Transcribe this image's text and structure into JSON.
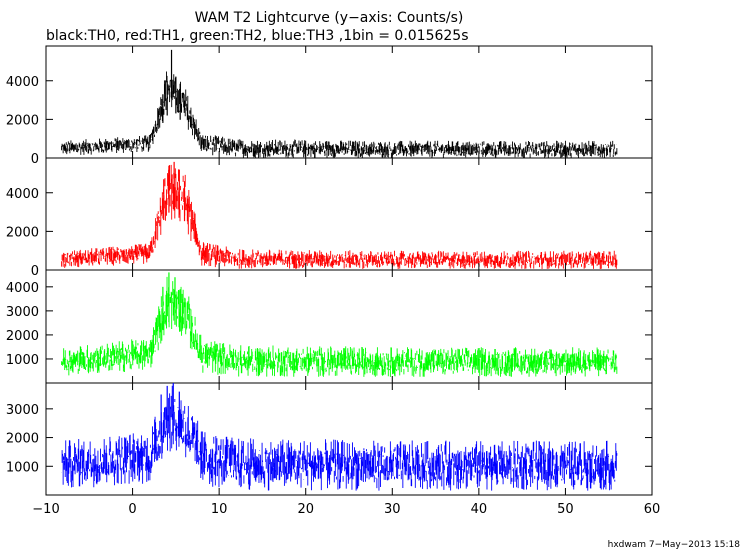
{
  "title": "WAM T2 Lightcurve (y−axis: Counts/s)",
  "subtitle": "black:TH0, red:TH1, green:TH2, blue:TH3 ,1bin = 0.015625s",
  "footer": "hxdwam  7−May−2013 15:18",
  "chart_data": {
    "type": "line",
    "x_range": [
      -10,
      60
    ],
    "x_ticks": [
      -10,
      0,
      10,
      20,
      30,
      40,
      50,
      60
    ],
    "x_tick_labels": [
      "−10",
      "0",
      "10",
      "20",
      "30",
      "40",
      "50",
      "60"
    ],
    "x_data_span": [
      -8.2,
      56.0
    ],
    "grid": false,
    "panels": [
      {
        "name": "TH0",
        "color": "#000000",
        "ylim": [
          0,
          5800
        ],
        "y_ticks": [
          0,
          2000,
          4000
        ],
        "y_tick_labels": [
          "0",
          "2000",
          "4000"
        ],
        "peak_x": [
          3.5,
          4.0,
          4.5,
          5.0,
          5.5
        ],
        "peak_y": [
          3300,
          4000,
          5600,
          4200,
          3600
        ],
        "profile": [
          [
            -8.2,
            300
          ],
          [
            0,
            400
          ],
          [
            1.5,
            700
          ],
          [
            2.5,
            2000
          ],
          [
            3.5,
            3300
          ],
          [
            4.5,
            3800
          ],
          [
            5.5,
            3100
          ],
          [
            6.5,
            1500
          ],
          [
            7.5,
            700
          ],
          [
            9,
            450
          ],
          [
            12,
            300
          ],
          [
            20,
            300
          ],
          [
            40,
            300
          ],
          [
            56,
            300
          ]
        ],
        "noise_band_high": [
          [
            -8.2,
            900
          ],
          [
            2,
            1200
          ],
          [
            4,
            4800
          ],
          [
            6,
            3800
          ],
          [
            8,
            1300
          ],
          [
            12,
            1000
          ],
          [
            30,
            900
          ],
          [
            56,
            900
          ]
        ],
        "noise_band_low": [
          [
            -8.2,
            100
          ],
          [
            2,
            300
          ],
          [
            4,
            2500
          ],
          [
            6,
            1800
          ],
          [
            8,
            200
          ],
          [
            12,
            0
          ],
          [
            56,
            0
          ]
        ]
      },
      {
        "name": "TH1",
        "color": "#ff0000",
        "ylim": [
          0,
          5800
        ],
        "y_ticks": [
          0,
          2000,
          4000
        ],
        "y_tick_labels": [
          "0",
          "2000",
          "4000"
        ],
        "peak_x": [
          3.6,
          4.2,
          4.8,
          5.4,
          6.0
        ],
        "peak_y": [
          4700,
          5400,
          5600,
          5200,
          4600
        ],
        "noise_band_high": [
          [
            -8.2,
            1000
          ],
          [
            2,
            1400
          ],
          [
            4,
            5600
          ],
          [
            6,
            5200
          ],
          [
            8,
            1500
          ],
          [
            12,
            1100
          ],
          [
            30,
            1000
          ],
          [
            56,
            1000
          ]
        ],
        "noise_band_low": [
          [
            -8.2,
            100
          ],
          [
            2,
            300
          ],
          [
            4,
            2600
          ],
          [
            6,
            2200
          ],
          [
            8,
            200
          ],
          [
            12,
            50
          ],
          [
            56,
            50
          ]
        ]
      },
      {
        "name": "TH2",
        "color": "#00ff00",
        "ylim": [
          0,
          4700
        ],
        "y_ticks": [
          1000,
          2000,
          3000,
          4000
        ],
        "y_tick_labels": [
          "1000",
          "2000",
          "3000",
          "4000"
        ],
        "peak_x": [
          3.5,
          4.2,
          4.9,
          5.5
        ],
        "peak_y": [
          4000,
          4600,
          4400,
          3900
        ],
        "noise_band_high": [
          [
            -8.2,
            1500
          ],
          [
            2,
            1900
          ],
          [
            4,
            4600
          ],
          [
            6,
            4200
          ],
          [
            8,
            1900
          ],
          [
            12,
            1600
          ],
          [
            30,
            1500
          ],
          [
            56,
            1500
          ]
        ],
        "noise_band_low": [
          [
            -8.2,
            300
          ],
          [
            2,
            500
          ],
          [
            4,
            2200
          ],
          [
            6,
            1900
          ],
          [
            8,
            400
          ],
          [
            12,
            250
          ],
          [
            56,
            250
          ]
        ]
      },
      {
        "name": "TH3",
        "color": "#0000ff",
        "ylim": [
          0,
          3900
        ],
        "y_ticks": [
          1000,
          2000,
          3000
        ],
        "y_tick_labels": [
          "1000",
          "2000",
          "3000"
        ],
        "peak_x": [
          3.3,
          4.0,
          4.7,
          5.4
        ],
        "peak_y": [
          3500,
          3800,
          3900,
          3600
        ],
        "noise_band_high": [
          [
            -8.2,
            1900
          ],
          [
            2,
            2300
          ],
          [
            4,
            3900
          ],
          [
            6,
            3600
          ],
          [
            8,
            2300
          ],
          [
            12,
            2000
          ],
          [
            30,
            1900
          ],
          [
            56,
            1900
          ]
        ],
        "noise_band_low": [
          [
            -8.2,
            200
          ],
          [
            2,
            400
          ],
          [
            4,
            1500
          ],
          [
            6,
            1300
          ],
          [
            8,
            300
          ],
          [
            12,
            150
          ],
          [
            56,
            150
          ]
        ]
      }
    ]
  }
}
